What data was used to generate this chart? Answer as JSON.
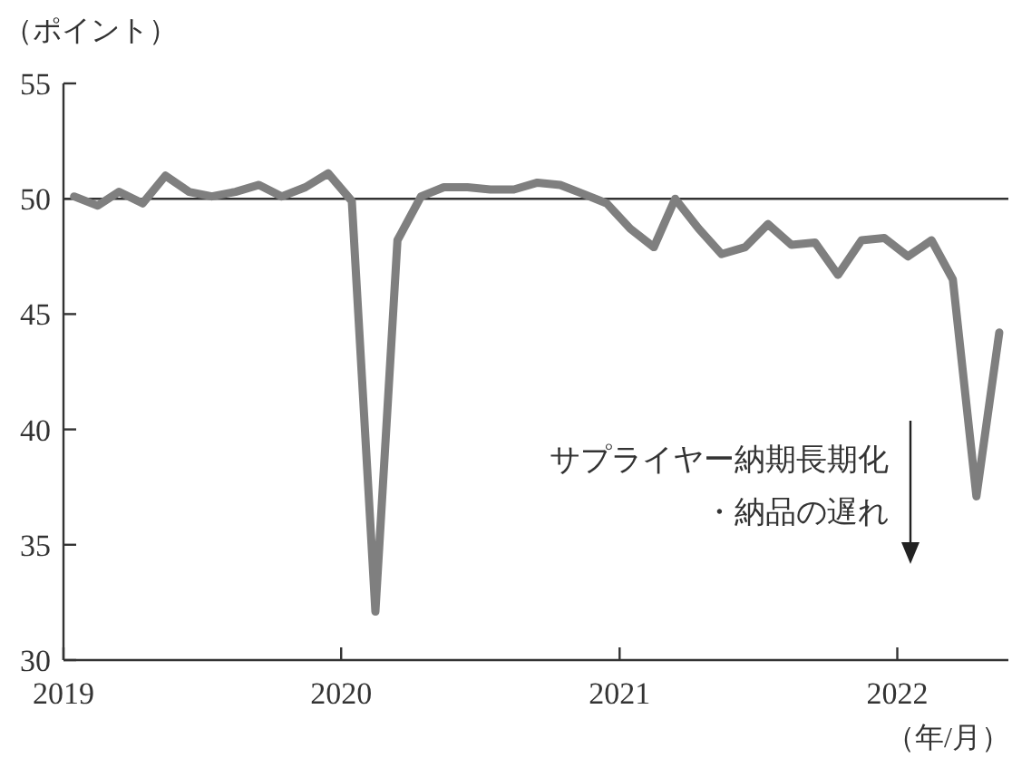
{
  "chart_data": {
    "type": "line",
    "ylabel": "（ポイント）",
    "xlabel": "（年/月）",
    "x": [
      "2019-01-15",
      "2019-02-15",
      "2019-03-15",
      "2019-04-15",
      "2019-05-15",
      "2019-06-15",
      "2019-07-15",
      "2019-08-15",
      "2019-09-15",
      "2019-10-15",
      "2019-11-15",
      "2019-12-15",
      "2020-01-15",
      "2020-02-15",
      "2020-03-15",
      "2020-04-15",
      "2020-05-15",
      "2020-06-15",
      "2020-07-15",
      "2020-08-15",
      "2020-09-15",
      "2020-10-15",
      "2020-11-15",
      "2020-12-15",
      "2021-01-15",
      "2021-02-15",
      "2021-03-15",
      "2021-04-15",
      "2021-05-15",
      "2021-06-15",
      "2021-07-15",
      "2021-08-15",
      "2021-09-15",
      "2021-10-15",
      "2021-11-15",
      "2021-12-15",
      "2022-01-15",
      "2022-02-15",
      "2022-03-15",
      "2022-04-15",
      "2022-05-15"
    ],
    "series": [
      {
        "color": "#7f7f7f",
        "values": [
          50.1,
          49.7,
          50.3,
          49.8,
          51.0,
          50.3,
          50.1,
          50.3,
          50.6,
          50.1,
          50.5,
          51.1,
          49.9,
          32.1,
          48.2,
          50.1,
          50.5,
          50.5,
          50.4,
          50.4,
          50.7,
          50.6,
          50.2,
          49.8,
          48.7,
          47.9,
          50.0,
          48.7,
          47.6,
          47.9,
          48.9,
          48.0,
          48.1,
          46.7,
          48.2,
          48.3,
          47.5,
          48.2,
          46.5,
          37.1,
          44.2
        ]
      }
    ],
    "xlim": [
      "2019-01-01",
      "2022-05-27"
    ],
    "xticks": [
      "2019",
      "2020",
      "2021",
      "2022"
    ],
    "ylim": [
      30,
      55
    ],
    "yticks": [
      30,
      35,
      40,
      45,
      50,
      55
    ],
    "ref_lines": [
      {
        "axis": "y",
        "value": 50,
        "color": "#333333"
      }
    ],
    "annotations": [
      "サプライヤー納期長期化",
      "・納品の遅れ"
    ],
    "grid": false,
    "marker": "none",
    "line_style": "solid"
  }
}
